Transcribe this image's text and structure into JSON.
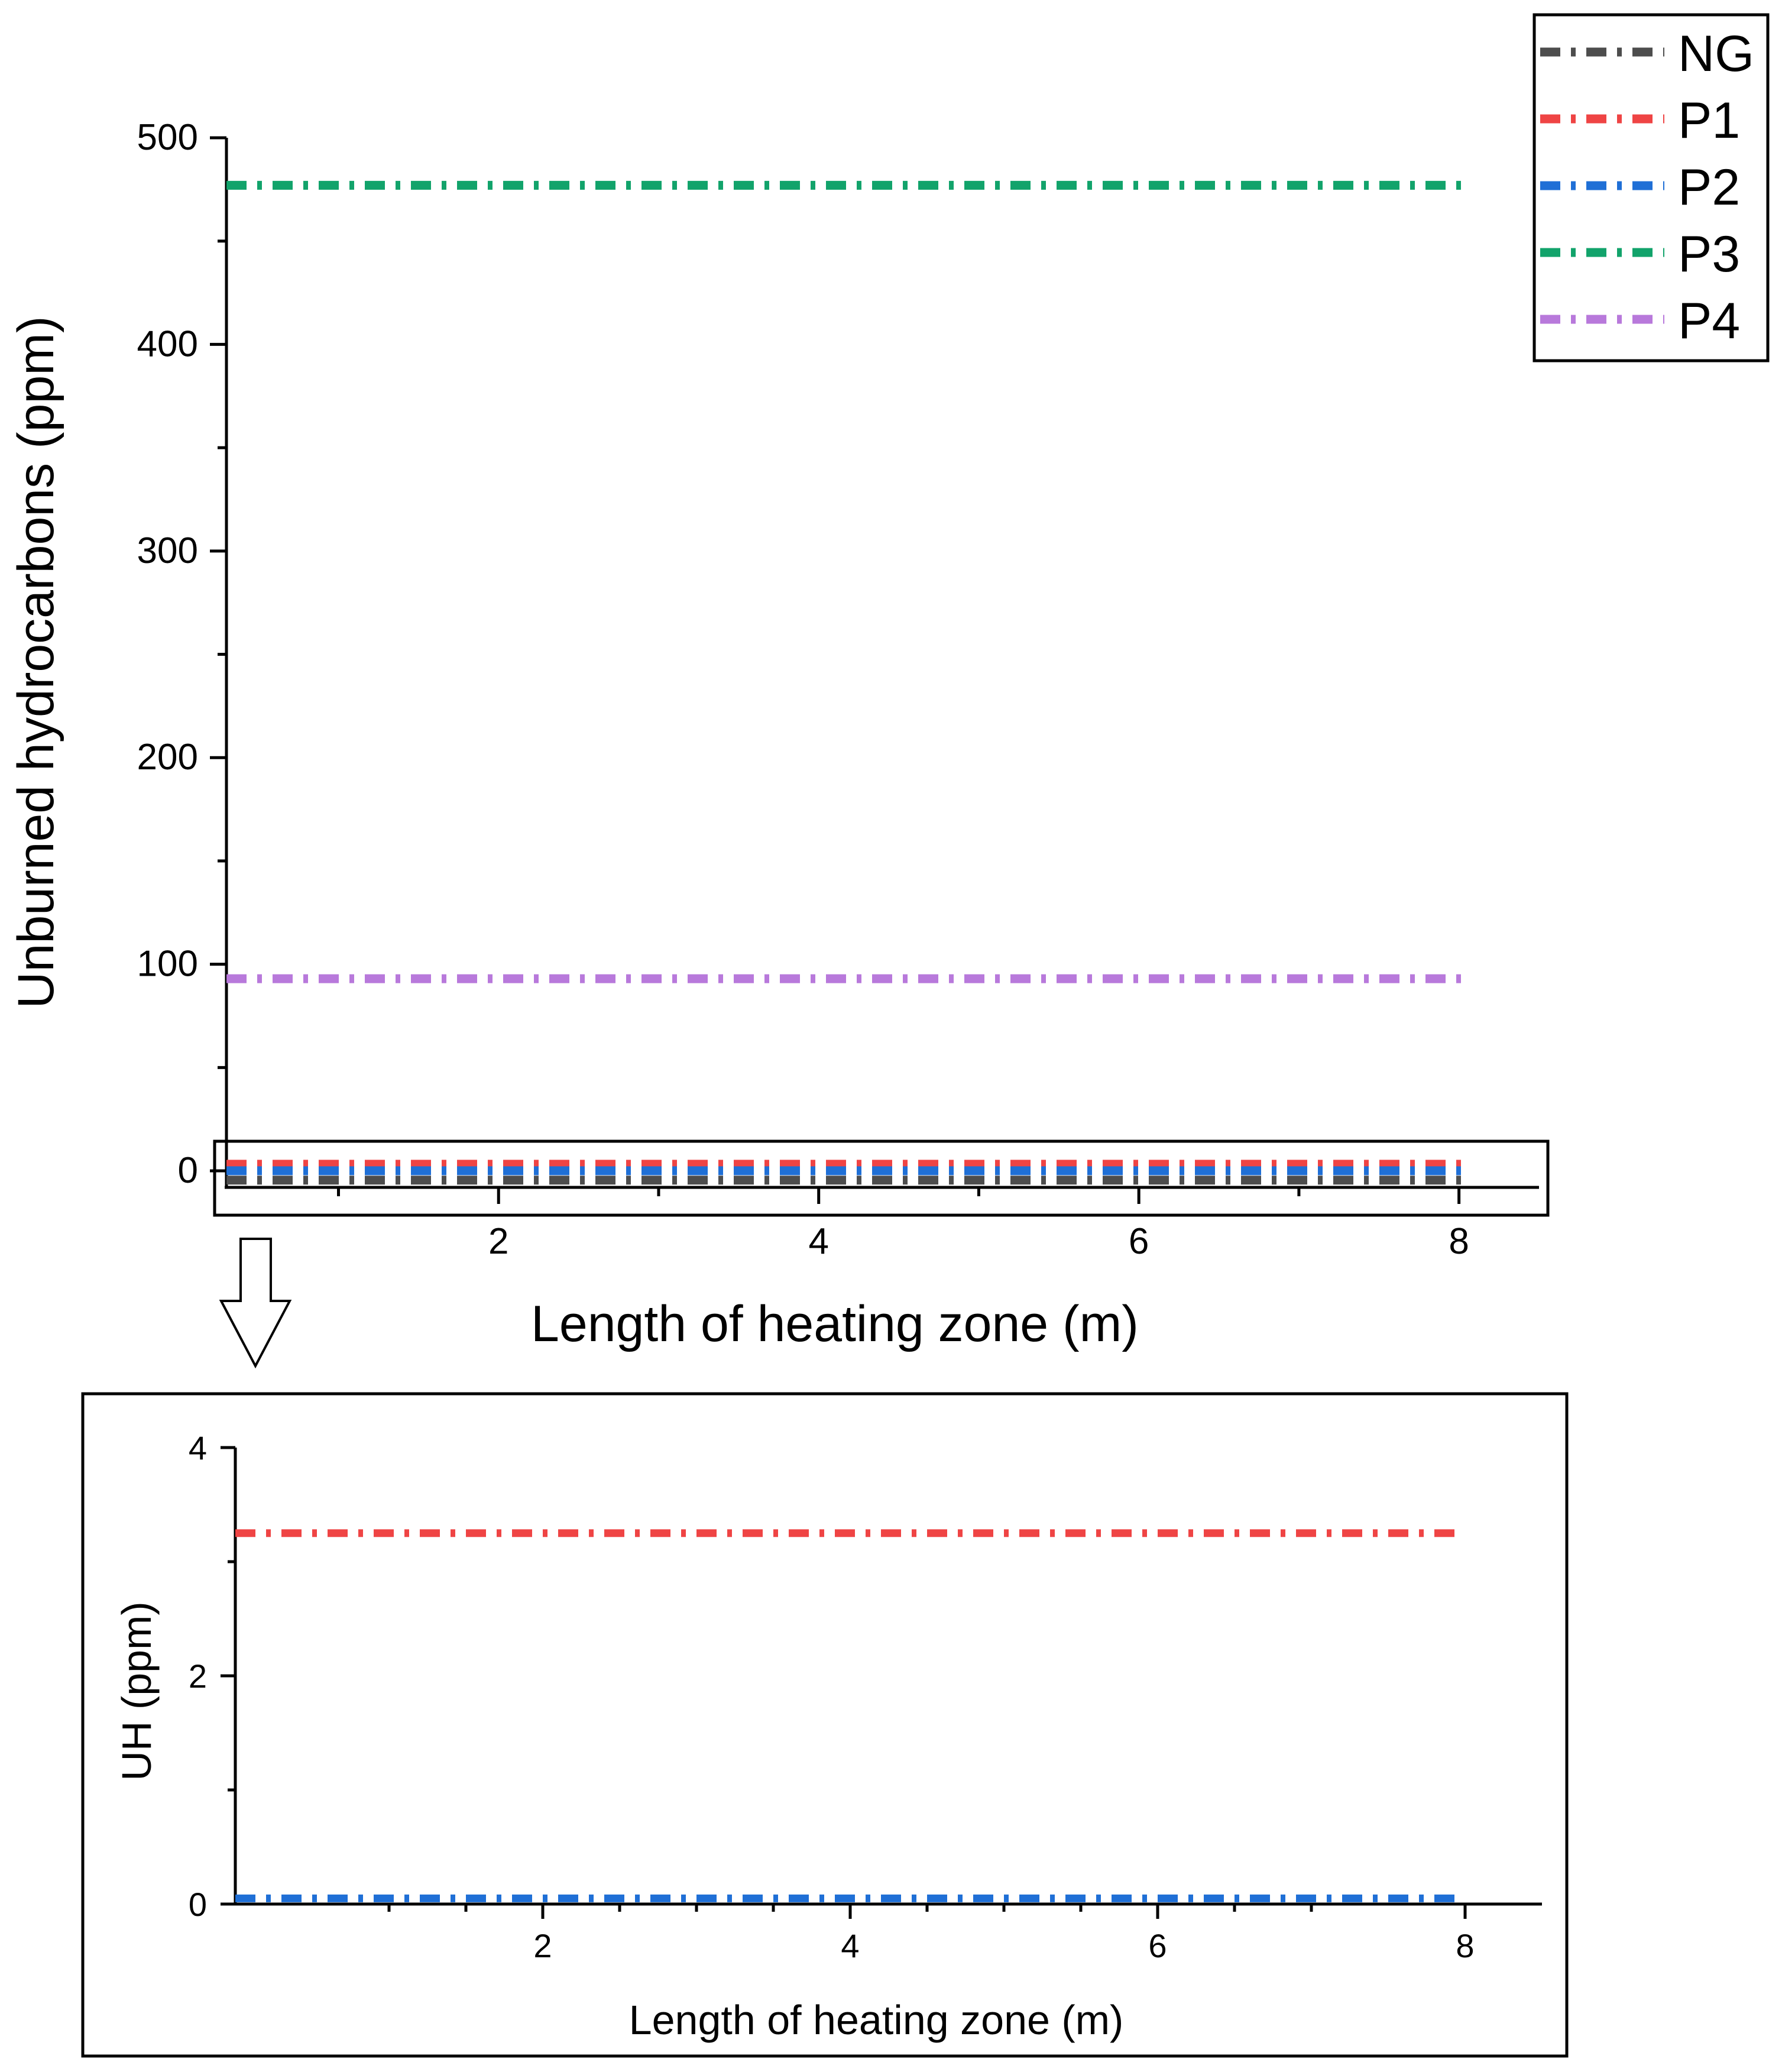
{
  "colors": {
    "NG": "#4d4d4d",
    "P1": "#ef4444",
    "P2": "#1f6fd6",
    "P3": "#12a36b",
    "P4": "#b879db",
    "axis": "#000000"
  },
  "chart_data": [
    {
      "id": "main",
      "type": "line",
      "title": "",
      "xlabel": "Length of heating zone (m)",
      "ylabel": "Unburned hydrocarbons (ppm)",
      "xlim": [
        0.3,
        8.5
      ],
      "ylim": [
        -8,
        500
      ],
      "xticks": [
        2,
        4,
        6,
        8
      ],
      "yticks": [
        0,
        100,
        200,
        300,
        400,
        500
      ],
      "x": [
        0.3,
        8.05
      ],
      "series": [
        {
          "name": "NG",
          "values": [
            -4.5,
            -4.5
          ]
        },
        {
          "name": "P1",
          "values": [
            3.2,
            3.2
          ]
        },
        {
          "name": "P2",
          "values": [
            0.05,
            0.05
          ]
        },
        {
          "name": "P3",
          "values": [
            477,
            477
          ]
        },
        {
          "name": "P4",
          "values": [
            93,
            93
          ]
        }
      ],
      "legend": {
        "entries": [
          "NG",
          "P1",
          "P2",
          "P3",
          "P4"
        ],
        "position": "top-right"
      },
      "annotation": "zoom region around 0 ppm shown in inset"
    },
    {
      "id": "inset",
      "type": "line",
      "title": "",
      "xlabel": "Length of heating zone (m)",
      "ylabel": "UH (ppm)",
      "xlim": [
        0.0,
        8.5
      ],
      "ylim": [
        0,
        4
      ],
      "xticks": [
        2,
        4,
        6,
        8
      ],
      "yticks": [
        0,
        2,
        4
      ],
      "x": [
        0.0,
        8.0
      ],
      "series": [
        {
          "name": "P1",
          "values": [
            3.25,
            3.25
          ]
        },
        {
          "name": "P2",
          "values": [
            0.05,
            0.05
          ]
        }
      ]
    }
  ]
}
